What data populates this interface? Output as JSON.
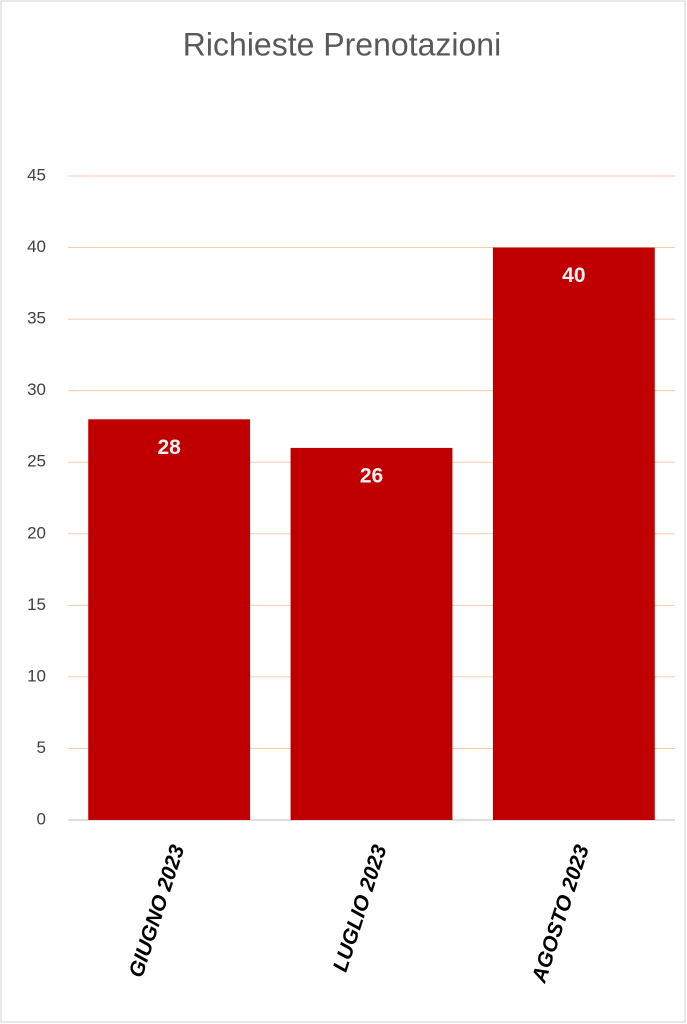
{
  "chart_data": {
    "type": "bar",
    "title": "Richieste Prenotazioni",
    "categories": [
      "GIUGNO 2023",
      "LUGLIO 2023",
      "AGOSTO 2023"
    ],
    "values": [
      28,
      26,
      40
    ],
    "color": "#c00000",
    "ylim": [
      0,
      45
    ],
    "yticks": [
      0,
      5,
      10,
      15,
      20,
      25,
      30,
      35,
      40,
      45
    ],
    "grid": true
  }
}
